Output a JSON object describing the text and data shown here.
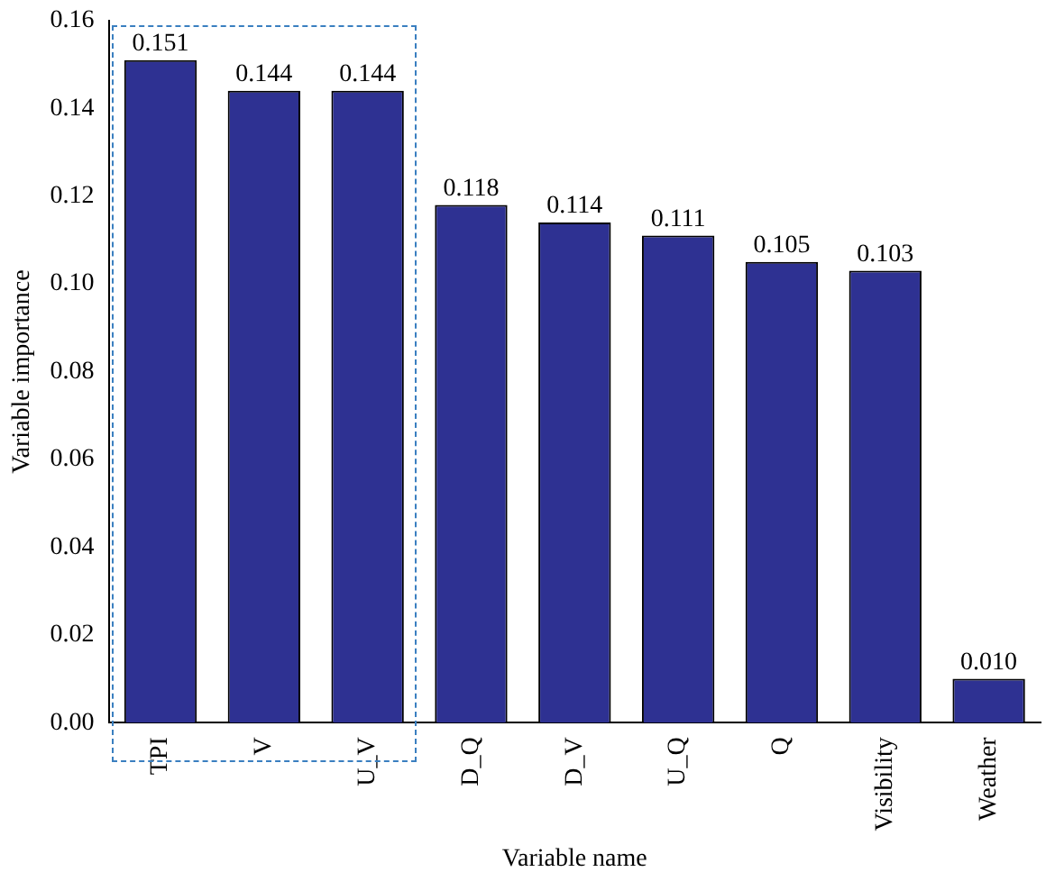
{
  "chart_data": {
    "type": "bar",
    "xlabel": "Variable name",
    "ylabel": "Variable importance",
    "categories": [
      "TPI",
      "V",
      "U_V",
      "D_Q",
      "D_V",
      "U_Q",
      "Q",
      "Visibility",
      "Weather"
    ],
    "values": [
      0.151,
      0.144,
      0.144,
      0.118,
      0.114,
      0.111,
      0.105,
      0.103,
      0.01
    ],
    "value_labels": [
      "0.151",
      "0.144",
      "0.144",
      "0.118",
      "0.114",
      "0.111",
      "0.105",
      "0.103",
      "0.010"
    ],
    "color": "#2e3192",
    "ylim": [
      0,
      0.16
    ],
    "yticks": [
      {
        "value": 0,
        "label": "0.00"
      },
      {
        "value": 0.02,
        "label": "0.02"
      },
      {
        "value": 0.04,
        "label": "0.04"
      },
      {
        "value": 0.06,
        "label": "0.06"
      },
      {
        "value": 0.08,
        "label": "0.08"
      },
      {
        "value": 0.1,
        "label": "0.10"
      },
      {
        "value": 0.12,
        "label": "0.12"
      },
      {
        "value": 0.14,
        "label": "0.14"
      },
      {
        "value": 0.16,
        "label": "0.16"
      }
    ],
    "grid": false,
    "legend": false
  }
}
